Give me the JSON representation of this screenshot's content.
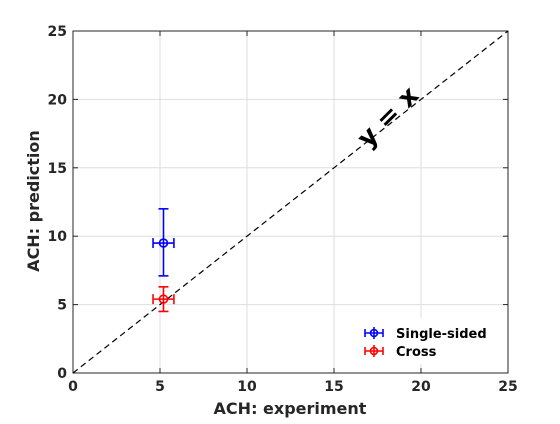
{
  "chart_data": {
    "type": "scatter",
    "xlabel": "ACH: experiment",
    "ylabel": "ACH: prediction",
    "xlim": [
      0,
      25
    ],
    "ylim": [
      0,
      25
    ],
    "xticks": [
      0,
      5,
      10,
      15,
      20,
      25
    ],
    "yticks": [
      0,
      5,
      10,
      15,
      20,
      25
    ],
    "grid": true,
    "legend_position": "bottom-right",
    "reference_line": {
      "label": "y = x",
      "style": "dashed",
      "color": "#000000"
    },
    "series": [
      {
        "name": "Single-sided",
        "color": "#0000ff",
        "points": [
          {
            "x": 5.2,
            "y": 9.5,
            "xerr": 0.6,
            "yerr_low": 2.4,
            "yerr_high": 2.5
          }
        ]
      },
      {
        "name": "Cross",
        "color": "#ff0000",
        "points": [
          {
            "x": 5.2,
            "y": 5.4,
            "xerr": 0.6,
            "yerr_low": 0.9,
            "yerr_high": 0.9
          }
        ]
      }
    ]
  }
}
